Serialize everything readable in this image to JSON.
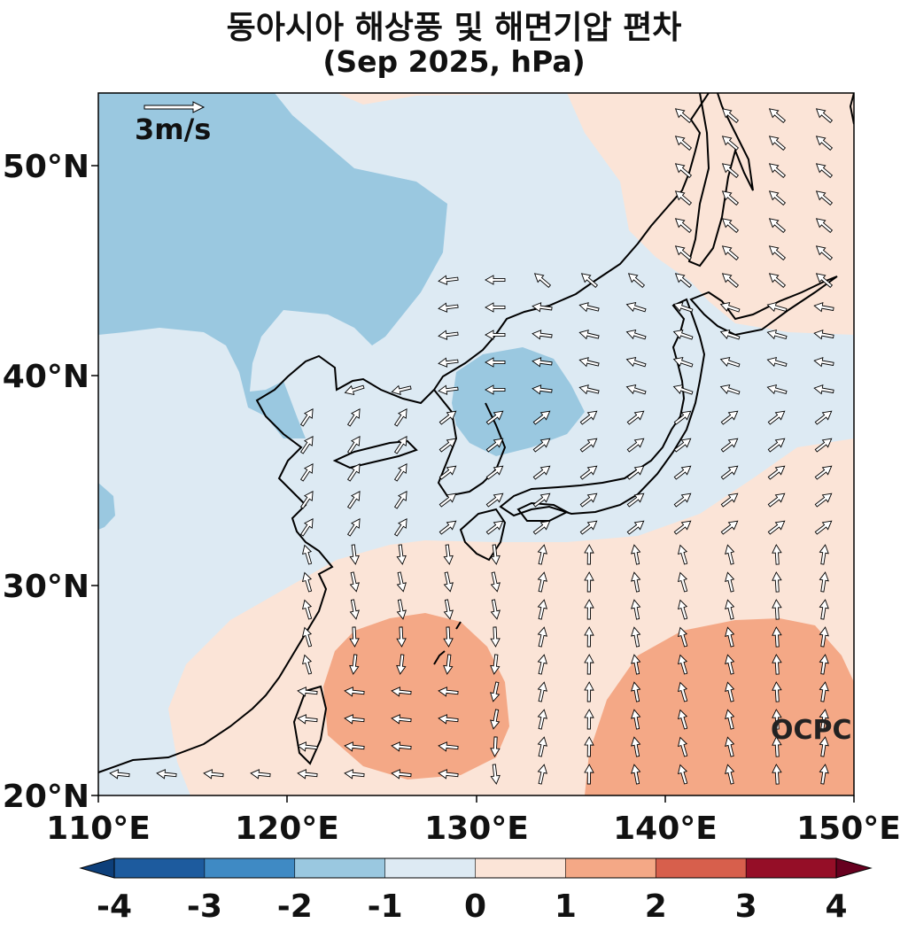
{
  "title": "동아시아 해상풍 및 해면기압 편차",
  "subtitle": "(Sep 2025, hPa)",
  "watermark": "OCPC",
  "vector_reference": "3m/s",
  "map": {
    "lon_range": [
      110,
      150
    ],
    "lat_range": [
      20,
      53.5
    ],
    "x_ticks": [
      "110°E",
      "120°E",
      "130°E",
      "140°E",
      "150°E"
    ],
    "y_ticks": [
      "20°N",
      "30°N",
      "40°N",
      "50°N"
    ]
  },
  "colorbar": {
    "ticks": [
      "-4",
      "-3",
      "-2",
      "-1",
      "0",
      "1",
      "2",
      "3",
      "4"
    ],
    "colors": [
      "#0d3f7a",
      "#1d5b9e",
      "#3f8ac4",
      "#9ac8e0",
      "#ddeaf3",
      "#fbe4d7",
      "#f4a886",
      "#d75f4c",
      "#950e27",
      "#67001f"
    ]
  }
}
